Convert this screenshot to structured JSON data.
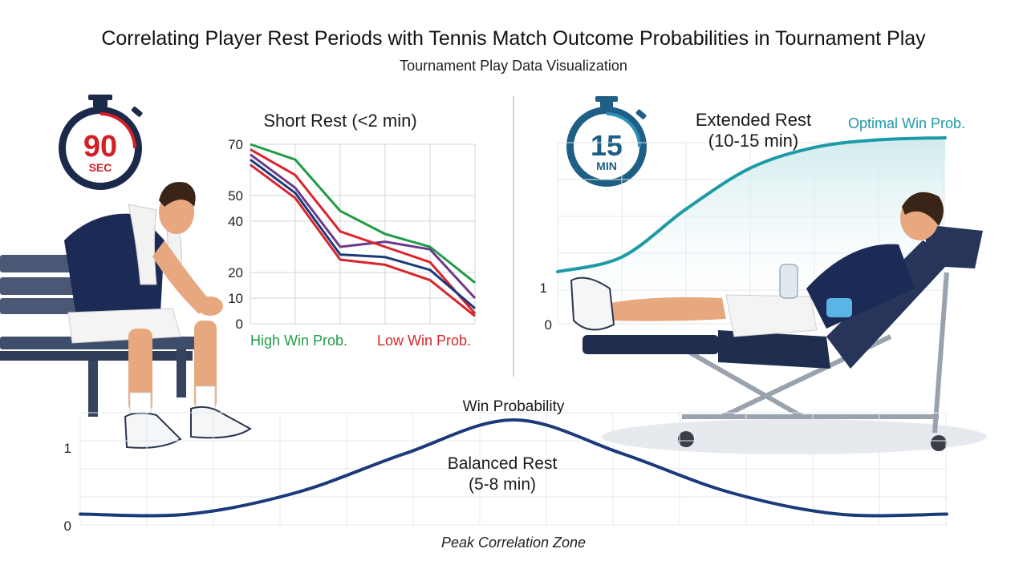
{
  "header": {
    "title": "Correlating Player Rest Periods with Tennis Match Outcome Probabilities in Tournament Play",
    "subtitle": "Tournament Play Data Visualization"
  },
  "timers": {
    "short": {
      "line1": "90",
      "line2": "SEC",
      "color": "#d32027"
    },
    "extended": {
      "line1": "15",
      "line2": "MIN",
      "color": "#1f6f9a"
    }
  },
  "colors": {
    "green": "#1f9c45",
    "red": "#d9252b",
    "navy": "#1b3a7a",
    "purple": "#6b3a8c",
    "teal": "#1e9aa6",
    "grid": "#cfd6df"
  },
  "chart_data": [
    {
      "type": "line",
      "title": "Short Rest (<2 min)",
      "x": [
        0,
        1,
        2,
        3,
        4,
        5
      ],
      "ylim": [
        0,
        70
      ],
      "yticks": [
        0,
        10,
        20,
        40,
        50,
        70
      ],
      "series": [
        {
          "color": "green",
          "values": [
            70,
            64,
            44,
            35,
            30,
            16
          ]
        },
        {
          "color": "purple",
          "values": [
            66,
            53,
            30,
            32,
            29,
            10
          ]
        },
        {
          "color": "red",
          "values": [
            68,
            58,
            36,
            30,
            24,
            4
          ]
        },
        {
          "color": "navy",
          "values": [
            64,
            51,
            27,
            26,
            21,
            6
          ]
        },
        {
          "color": "red",
          "values": [
            62,
            49,
            25,
            23,
            17,
            3
          ]
        }
      ],
      "legend": [
        {
          "label": "High Win Prob.",
          "color": "green"
        },
        {
          "label": "Low Win Prob.",
          "color": "red"
        }
      ]
    },
    {
      "type": "line",
      "title": "Extended Rest (10-15 min)",
      "ylim": [
        0,
        1
      ],
      "yticks": [
        0,
        1
      ],
      "series": [
        {
          "name": "Optimal Win Prob.",
          "color": "teal",
          "values": [
            0.28,
            0.36,
            0.62,
            0.84,
            0.95,
            0.99,
            1.0
          ]
        }
      ],
      "annotation": "Optimal Win Prob."
    },
    {
      "type": "line",
      "title": "Win Probability",
      "ylim": [
        0,
        1
      ],
      "yticks": [
        0,
        1
      ],
      "series": [
        {
          "color": "navy",
          "values": [
            0.1,
            0.1,
            0.3,
            0.66,
            0.97,
            0.66,
            0.3,
            0.1,
            0.1
          ]
        }
      ],
      "center_label": {
        "line1": "Balanced Rest",
        "line2": "(5-8 min)"
      },
      "xlabel": "Peak Correlation Zone"
    }
  ]
}
